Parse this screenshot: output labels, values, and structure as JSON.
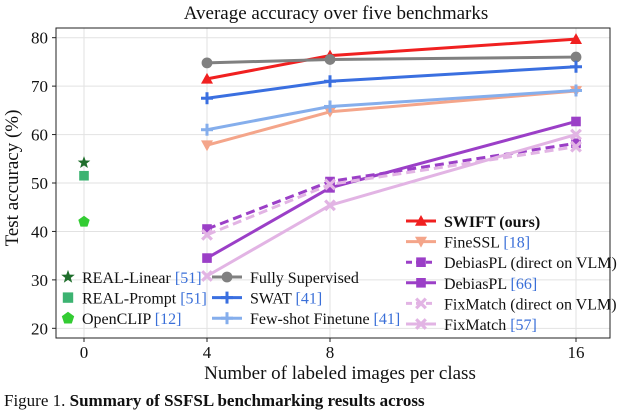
{
  "chart_data": {
    "type": "line",
    "title": "Average accuracy over five benchmarks",
    "xlabel": "Number of labeled images per class",
    "ylabel": "Test accuracy (%)",
    "x_ticks": [
      "0",
      "4",
      "8",
      "16"
    ],
    "y_ticks": [
      20,
      30,
      40,
      50,
      60,
      70,
      80
    ],
    "ylim": [
      18,
      82
    ],
    "grid": true,
    "series": [
      {
        "name": "SWIFT (ours)",
        "bold": true,
        "color": "#f02020",
        "marker": "triangle-up",
        "dash": false,
        "points": [
          [
            4,
            71.5
          ],
          [
            8,
            76.3
          ],
          [
            16,
            79.7
          ]
        ]
      },
      {
        "name": "FineSSL",
        "ref": "[18]",
        "color": "#f4a58a",
        "marker": "triangle-down",
        "dash": false,
        "points": [
          [
            4,
            57.8
          ],
          [
            8,
            64.7
          ],
          [
            16,
            69.0
          ]
        ]
      },
      {
        "name": "DebiasPL (direct on VLM)",
        "color": "#9b3fc7",
        "marker": "square",
        "dash": true,
        "points": [
          [
            4,
            40.5
          ],
          [
            8,
            50.3
          ],
          [
            16,
            58.2
          ]
        ]
      },
      {
        "name": "DebiasPL",
        "ref": "[66]",
        "color": "#9b3fc7",
        "marker": "square",
        "dash": false,
        "points": [
          [
            4,
            34.5
          ],
          [
            8,
            49.0
          ],
          [
            16,
            62.7
          ]
        ]
      },
      {
        "name": "FixMatch (direct on VLM)",
        "color": "#e2b4e4",
        "marker": "x",
        "dash": true,
        "points": [
          [
            4,
            39.3
          ],
          [
            8,
            49.7
          ],
          [
            16,
            57.5
          ]
        ]
      },
      {
        "name": "FixMatch",
        "ref": "[57]",
        "color": "#e2b4e4",
        "marker": "x",
        "dash": false,
        "points": [
          [
            4,
            30.8
          ],
          [
            8,
            45.4
          ],
          [
            16,
            60.0
          ]
        ]
      },
      {
        "name": "Fully Supervised",
        "color": "#808080",
        "marker": "circle",
        "dash": false,
        "points": [
          [
            4,
            74.8
          ],
          [
            8,
            75.5
          ],
          [
            16,
            76.0
          ]
        ]
      },
      {
        "name": "SWAT",
        "ref": "[41]",
        "color": "#3a6fe0",
        "marker": "plus",
        "dash": false,
        "points": [
          [
            4,
            67.5
          ],
          [
            8,
            71.0
          ],
          [
            16,
            74.0
          ]
        ]
      },
      {
        "name": "Few-shot Finetune",
        "ref": "[41]",
        "color": "#85aeec",
        "marker": "plus",
        "dash": false,
        "points": [
          [
            4,
            61.0
          ],
          [
            8,
            65.8
          ],
          [
            16,
            69.1
          ]
        ]
      },
      {
        "name": "REAL-Linear",
        "ref": "[51]",
        "color": "#1f6e2c",
        "marker": "star",
        "dash": false,
        "points": [
          [
            0,
            54.2
          ]
        ]
      },
      {
        "name": "REAL-Prompt",
        "ref": "[51]",
        "color": "#3cb371",
        "marker": "square",
        "dash": false,
        "points": [
          [
            0,
            51.5
          ]
        ]
      },
      {
        "name": "OpenCLIP",
        "ref": "[12]",
        "color": "#33cc33",
        "marker": "pentagon",
        "dash": false,
        "points": [
          [
            0,
            42.0
          ]
        ]
      }
    ],
    "legend_right_order": [
      "SWIFT (ours)",
      "FineSSL",
      "DebiasPL (direct on VLM)",
      "DebiasPL",
      "FixMatch (direct on VLM)",
      "FixMatch"
    ],
    "legend_middle_order": [
      "Fully Supervised",
      "SWAT",
      "Few-shot Finetune"
    ],
    "legend_left_order": [
      "REAL-Linear",
      "REAL-Prompt",
      "OpenCLIP"
    ],
    "ref_color": "#3a6fd8"
  },
  "caption": {
    "prefix": "Figure 1.",
    "bold_text": "Summary of SSFSL benchmarking results across"
  }
}
